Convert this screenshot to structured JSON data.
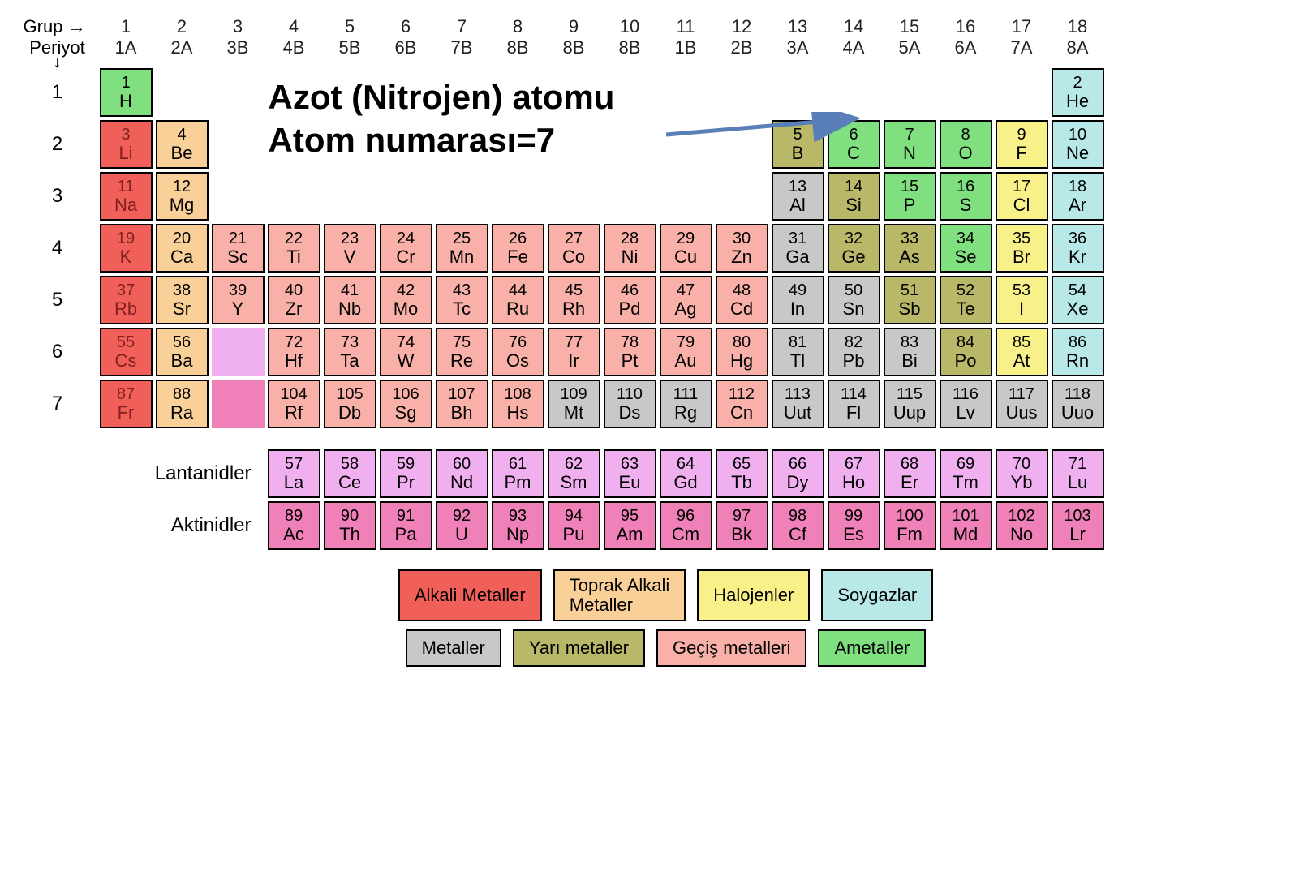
{
  "labels": {
    "grup": "Grup",
    "periyot": "Periyot",
    "lantanidler": "Lantanidler",
    "aktinidler": "Aktinidler"
  },
  "annotation": {
    "line1": "Azot (Nitrojen) atomu",
    "line2": "Atom numarası=7",
    "arrow_color": "#5a7fb8"
  },
  "group_numbers": [
    "1",
    "2",
    "3",
    "4",
    "5",
    "6",
    "7",
    "8",
    "9",
    "10",
    "11",
    "12",
    "13",
    "14",
    "15",
    "16",
    "17",
    "18"
  ],
  "group_names": [
    "1A",
    "2A",
    "3B",
    "4B",
    "5B",
    "6B",
    "7B",
    "8B",
    "8B",
    "8B",
    "1B",
    "2B",
    "3A",
    "4A",
    "5A",
    "6A",
    "7A",
    "8A"
  ],
  "periods": [
    "1",
    "2",
    "3",
    "4",
    "5",
    "6",
    "7"
  ],
  "colors": {
    "alkali": "#f06058",
    "toprak": "#f8d098",
    "gecis": "#f8b0a8",
    "metaller": "#c8c8c8",
    "yari": "#b8b868",
    "ametaller": "#80e080",
    "halojen": "#f8f088",
    "soygaz": "#b8e8e8",
    "lantanid": "#f0b0f0",
    "aktinid": "#f080b8",
    "hydrogen": "#80e080",
    "border": "#000000",
    "text": "#000000",
    "darktext": "#802020"
  },
  "elements": {
    "p1": [
      {
        "n": "1",
        "s": "H",
        "c": "ametaller"
      },
      null,
      null,
      null,
      null,
      null,
      null,
      null,
      null,
      null,
      null,
      null,
      null,
      null,
      null,
      null,
      null,
      {
        "n": "2",
        "s": "He",
        "c": "soygaz"
      }
    ],
    "p2": [
      {
        "n": "3",
        "s": "Li",
        "c": "alkali",
        "dt": true
      },
      {
        "n": "4",
        "s": "Be",
        "c": "toprak"
      },
      null,
      null,
      null,
      null,
      null,
      null,
      null,
      null,
      null,
      null,
      {
        "n": "5",
        "s": "B",
        "c": "yari"
      },
      {
        "n": "6",
        "s": "C",
        "c": "ametaller"
      },
      {
        "n": "7",
        "s": "N",
        "c": "ametaller"
      },
      {
        "n": "8",
        "s": "O",
        "c": "ametaller"
      },
      {
        "n": "9",
        "s": "F",
        "c": "halojen"
      },
      {
        "n": "10",
        "s": "Ne",
        "c": "soygaz"
      }
    ],
    "p3": [
      {
        "n": "11",
        "s": "Na",
        "c": "alkali",
        "dt": true
      },
      {
        "n": "12",
        "s": "Mg",
        "c": "toprak"
      },
      null,
      null,
      null,
      null,
      null,
      null,
      null,
      null,
      null,
      null,
      {
        "n": "13",
        "s": "Al",
        "c": "metaller"
      },
      {
        "n": "14",
        "s": "Si",
        "c": "yari"
      },
      {
        "n": "15",
        "s": "P",
        "c": "ametaller"
      },
      {
        "n": "16",
        "s": "S",
        "c": "ametaller"
      },
      {
        "n": "17",
        "s": "Cl",
        "c": "halojen"
      },
      {
        "n": "18",
        "s": "Ar",
        "c": "soygaz"
      }
    ],
    "p4": [
      {
        "n": "19",
        "s": "K",
        "c": "alkali",
        "dt": true
      },
      {
        "n": "20",
        "s": "Ca",
        "c": "toprak"
      },
      {
        "n": "21",
        "s": "Sc",
        "c": "gecis"
      },
      {
        "n": "22",
        "s": "Ti",
        "c": "gecis"
      },
      {
        "n": "23",
        "s": "V",
        "c": "gecis"
      },
      {
        "n": "24",
        "s": "Cr",
        "c": "gecis"
      },
      {
        "n": "25",
        "s": "Mn",
        "c": "gecis"
      },
      {
        "n": "26",
        "s": "Fe",
        "c": "gecis"
      },
      {
        "n": "27",
        "s": "Co",
        "c": "gecis"
      },
      {
        "n": "28",
        "s": "Ni",
        "c": "gecis"
      },
      {
        "n": "29",
        "s": "Cu",
        "c": "gecis"
      },
      {
        "n": "30",
        "s": "Zn",
        "c": "gecis"
      },
      {
        "n": "31",
        "s": "Ga",
        "c": "metaller"
      },
      {
        "n": "32",
        "s": "Ge",
        "c": "yari"
      },
      {
        "n": "33",
        "s": "As",
        "c": "yari"
      },
      {
        "n": "34",
        "s": "Se",
        "c": "ametaller"
      },
      {
        "n": "35",
        "s": "Br",
        "c": "halojen"
      },
      {
        "n": "36",
        "s": "Kr",
        "c": "soygaz"
      }
    ],
    "p5": [
      {
        "n": "37",
        "s": "Rb",
        "c": "alkali",
        "dt": true
      },
      {
        "n": "38",
        "s": "Sr",
        "c": "toprak"
      },
      {
        "n": "39",
        "s": "Y",
        "c": "gecis"
      },
      {
        "n": "40",
        "s": "Zr",
        "c": "gecis"
      },
      {
        "n": "41",
        "s": "Nb",
        "c": "gecis"
      },
      {
        "n": "42",
        "s": "Mo",
        "c": "gecis"
      },
      {
        "n": "43",
        "s": "Tc",
        "c": "gecis"
      },
      {
        "n": "44",
        "s": "Ru",
        "c": "gecis"
      },
      {
        "n": "45",
        "s": "Rh",
        "c": "gecis"
      },
      {
        "n": "46",
        "s": "Pd",
        "c": "gecis"
      },
      {
        "n": "47",
        "s": "Ag",
        "c": "gecis"
      },
      {
        "n": "48",
        "s": "Cd",
        "c": "gecis"
      },
      {
        "n": "49",
        "s": "In",
        "c": "metaller"
      },
      {
        "n": "50",
        "s": "Sn",
        "c": "metaller"
      },
      {
        "n": "51",
        "s": "Sb",
        "c": "yari"
      },
      {
        "n": "52",
        "s": "Te",
        "c": "yari"
      },
      {
        "n": "53",
        "s": "I",
        "c": "halojen"
      },
      {
        "n": "54",
        "s": "Xe",
        "c": "soygaz"
      }
    ],
    "p6": [
      {
        "n": "55",
        "s": "Cs",
        "c": "alkali",
        "dt": true
      },
      {
        "n": "56",
        "s": "Ba",
        "c": "toprak"
      },
      {
        "n": "",
        "s": "",
        "c": "lantanid",
        "blank": true
      },
      {
        "n": "72",
        "s": "Hf",
        "c": "gecis"
      },
      {
        "n": "73",
        "s": "Ta",
        "c": "gecis"
      },
      {
        "n": "74",
        "s": "W",
        "c": "gecis"
      },
      {
        "n": "75",
        "s": "Re",
        "c": "gecis"
      },
      {
        "n": "76",
        "s": "Os",
        "c": "gecis"
      },
      {
        "n": "77",
        "s": "Ir",
        "c": "gecis"
      },
      {
        "n": "78",
        "s": "Pt",
        "c": "gecis"
      },
      {
        "n": "79",
        "s": "Au",
        "c": "gecis"
      },
      {
        "n": "80",
        "s": "Hg",
        "c": "gecis"
      },
      {
        "n": "81",
        "s": "Tl",
        "c": "metaller"
      },
      {
        "n": "82",
        "s": "Pb",
        "c": "metaller"
      },
      {
        "n": "83",
        "s": "Bi",
        "c": "metaller"
      },
      {
        "n": "84",
        "s": "Po",
        "c": "yari"
      },
      {
        "n": "85",
        "s": "At",
        "c": "halojen"
      },
      {
        "n": "86",
        "s": "Rn",
        "c": "soygaz"
      }
    ],
    "p7": [
      {
        "n": "87",
        "s": "Fr",
        "c": "alkali",
        "dt": true
      },
      {
        "n": "88",
        "s": "Ra",
        "c": "toprak"
      },
      {
        "n": "",
        "s": "",
        "c": "aktinid",
        "blank": true
      },
      {
        "n": "104",
        "s": "Rf",
        "c": "gecis"
      },
      {
        "n": "105",
        "s": "Db",
        "c": "gecis"
      },
      {
        "n": "106",
        "s": "Sg",
        "c": "gecis"
      },
      {
        "n": "107",
        "s": "Bh",
        "c": "gecis"
      },
      {
        "n": "108",
        "s": "Hs",
        "c": "gecis"
      },
      {
        "n": "109",
        "s": "Mt",
        "c": "metaller"
      },
      {
        "n": "110",
        "s": "Ds",
        "c": "metaller"
      },
      {
        "n": "111",
        "s": "Rg",
        "c": "metaller"
      },
      {
        "n": "112",
        "s": "Cn",
        "c": "gecis"
      },
      {
        "n": "113",
        "s": "Uut",
        "c": "metaller"
      },
      {
        "n": "114",
        "s": "Fl",
        "c": "metaller"
      },
      {
        "n": "115",
        "s": "Uup",
        "c": "metaller"
      },
      {
        "n": "116",
        "s": "Lv",
        "c": "metaller"
      },
      {
        "n": "117",
        "s": "Uus",
        "c": "metaller"
      },
      {
        "n": "118",
        "s": "Uuo",
        "c": "metaller"
      }
    ]
  },
  "lanthanides": [
    {
      "n": "57",
      "s": "La"
    },
    {
      "n": "58",
      "s": "Ce"
    },
    {
      "n": "59",
      "s": "Pr"
    },
    {
      "n": "60",
      "s": "Nd"
    },
    {
      "n": "61",
      "s": "Pm"
    },
    {
      "n": "62",
      "s": "Sm"
    },
    {
      "n": "63",
      "s": "Eu"
    },
    {
      "n": "64",
      "s": "Gd"
    },
    {
      "n": "65",
      "s": "Tb"
    },
    {
      "n": "66",
      "s": "Dy"
    },
    {
      "n": "67",
      "s": "Ho"
    },
    {
      "n": "68",
      "s": "Er"
    },
    {
      "n": "69",
      "s": "Tm"
    },
    {
      "n": "70",
      "s": "Yb"
    },
    {
      "n": "71",
      "s": "Lu"
    }
  ],
  "actinides": [
    {
      "n": "89",
      "s": "Ac"
    },
    {
      "n": "90",
      "s": "Th"
    },
    {
      "n": "91",
      "s": "Pa"
    },
    {
      "n": "92",
      "s": "U"
    },
    {
      "n": "93",
      "s": "Np"
    },
    {
      "n": "94",
      "s": "Pu"
    },
    {
      "n": "95",
      "s": "Am"
    },
    {
      "n": "96",
      "s": "Cm"
    },
    {
      "n": "97",
      "s": "Bk"
    },
    {
      "n": "98",
      "s": "Cf"
    },
    {
      "n": "99",
      "s": "Es"
    },
    {
      "n": "100",
      "s": "Fm"
    },
    {
      "n": "101",
      "s": "Md"
    },
    {
      "n": "102",
      "s": "No"
    },
    {
      "n": "103",
      "s": "Lr"
    }
  ],
  "legend": {
    "row1": [
      {
        "label": "Alkali Metaller",
        "c": "alkali"
      },
      {
        "label": "Toprak Alkali\nMetaller",
        "c": "toprak",
        "two": true
      },
      {
        "label": "Halojenler",
        "c": "halojen"
      },
      {
        "label": "Soygazlar",
        "c": "soygaz"
      }
    ],
    "row2": [
      {
        "label": "Metaller",
        "c": "metaller"
      },
      {
        "label": "Yarı metaller",
        "c": "yari"
      },
      {
        "label": "Geçiş metalleri",
        "c": "gecis"
      },
      {
        "label": "Ametaller",
        "c": "ametaller"
      }
    ]
  }
}
